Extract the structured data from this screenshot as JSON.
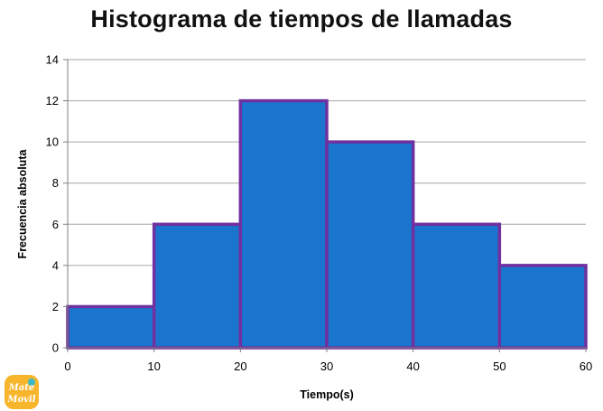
{
  "chart_data": {
    "type": "bar",
    "title": "Histograma de tiempos de llamadas",
    "xlabel": "Tiempo(s)",
    "ylabel": "Frecuencia absoluta",
    "bins": [
      {
        "from": 0,
        "to": 10,
        "value": 2
      },
      {
        "from": 10,
        "to": 20,
        "value": 6
      },
      {
        "from": 20,
        "to": 30,
        "value": 12
      },
      {
        "from": 30,
        "to": 40,
        "value": 10
      },
      {
        "from": 40,
        "to": 50,
        "value": 6
      },
      {
        "from": 50,
        "to": 60,
        "value": 4
      }
    ],
    "xticks": [
      0,
      10,
      20,
      30,
      40,
      50,
      60
    ],
    "yticks": [
      0,
      2,
      4,
      6,
      8,
      10,
      12,
      14
    ],
    "xlim": [
      0,
      60
    ],
    "ylim": [
      0,
      14
    ],
    "grid": "horizontal",
    "legend": "none",
    "colors": {
      "bar_fill": "#1A75CF",
      "bar_edge": "#7030A0",
      "grid": "#A6A6A6",
      "axis": "#808080"
    }
  },
  "logo": {
    "line1": "Mate",
    "line2": "Movil",
    "colors": {
      "primary": "#F7B52C",
      "secondary": "#3FB8C5"
    }
  }
}
